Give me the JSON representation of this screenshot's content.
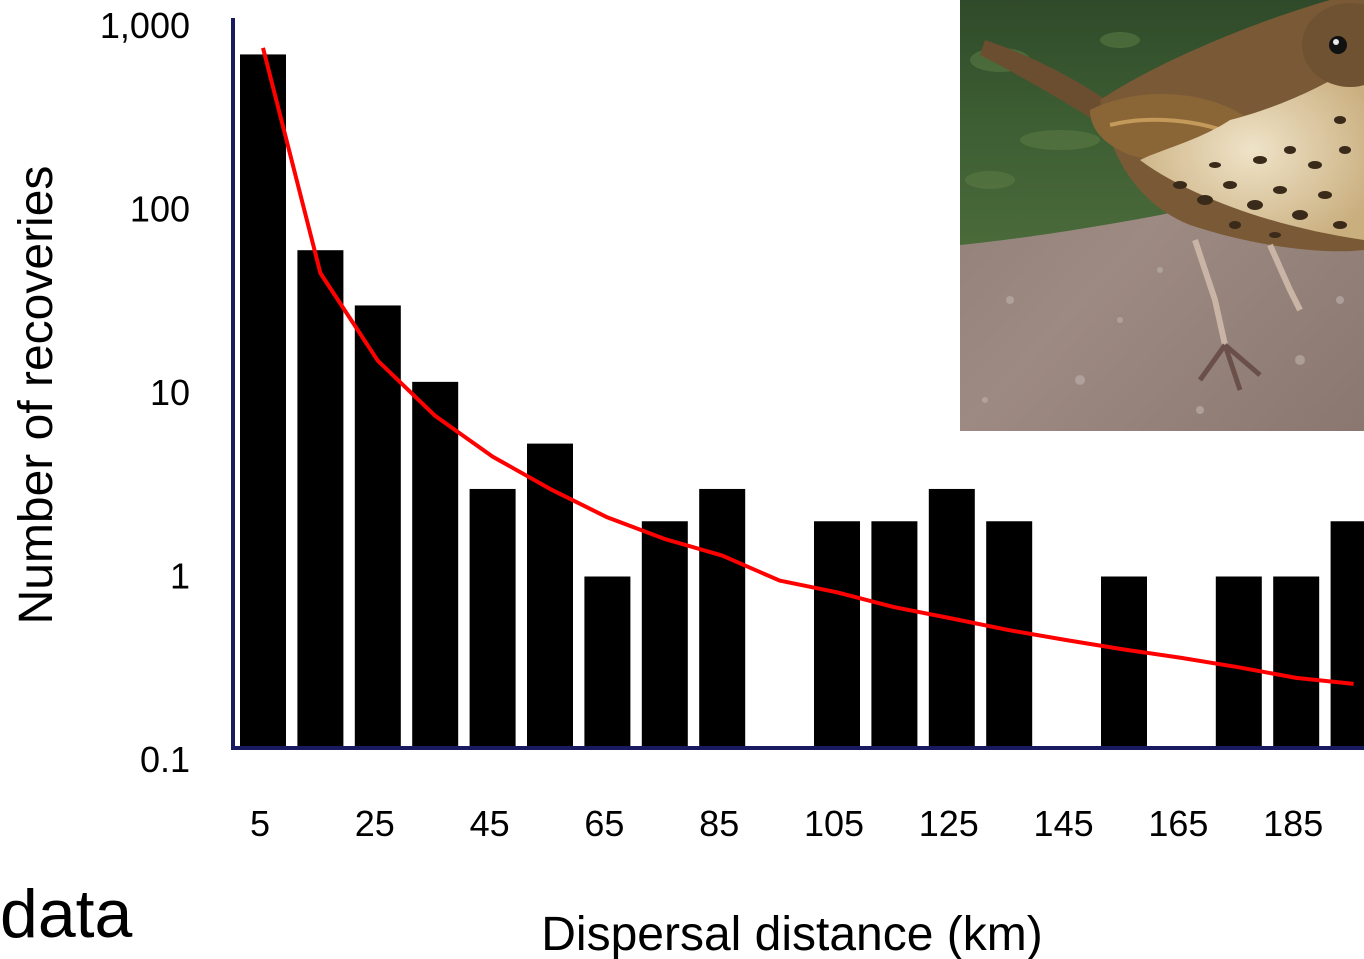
{
  "chart_data": {
    "type": "bar",
    "categories": [
      "5",
      "15",
      "25",
      "35",
      "45",
      "55",
      "65",
      "75",
      "85",
      "95",
      "105",
      "115",
      "125",
      "135",
      "145",
      "155",
      "165",
      "175",
      "185",
      "195"
    ],
    "x_tick_labels": [
      "5",
      "25",
      "45",
      "65",
      "85",
      "105",
      "125",
      "145",
      "165",
      "185"
    ],
    "values": [
      700,
      60,
      30,
      11.5,
      3,
      5.3,
      1,
      2,
      3,
      0,
      2,
      2,
      3,
      2,
      0,
      1,
      0,
      1,
      1,
      2
    ],
    "fit_line": {
      "x": [
        5,
        15,
        25,
        35,
        45,
        55,
        65,
        75,
        85,
        95,
        105,
        115,
        125,
        135,
        145,
        155,
        165,
        175,
        185,
        195
      ],
      "y": [
        760,
        45,
        15,
        7.5,
        4.5,
        3.0,
        2.1,
        1.6,
        1.3,
        0.95,
        0.82,
        0.68,
        0.59,
        0.51,
        0.45,
        0.4,
        0.36,
        0.32,
        0.28,
        0.26
      ]
    },
    "y_scale": "log",
    "ylim": [
      0.1,
      1000
    ],
    "y_tick_labels": [
      "1,000",
      "100",
      "10",
      "1",
      "0.1"
    ],
    "y_tick_values": [
      1000,
      100,
      10,
      1,
      0.1
    ],
    "xlabel": "Dispersal distance (km)",
    "ylabel": "Number of recoveries",
    "colors": {
      "bars": "#000000",
      "fit_line": "#ff0000",
      "axis": "#1a1a5e"
    }
  },
  "side_text": "data",
  "photo": {
    "subject": "song thrush on gravel path"
  }
}
